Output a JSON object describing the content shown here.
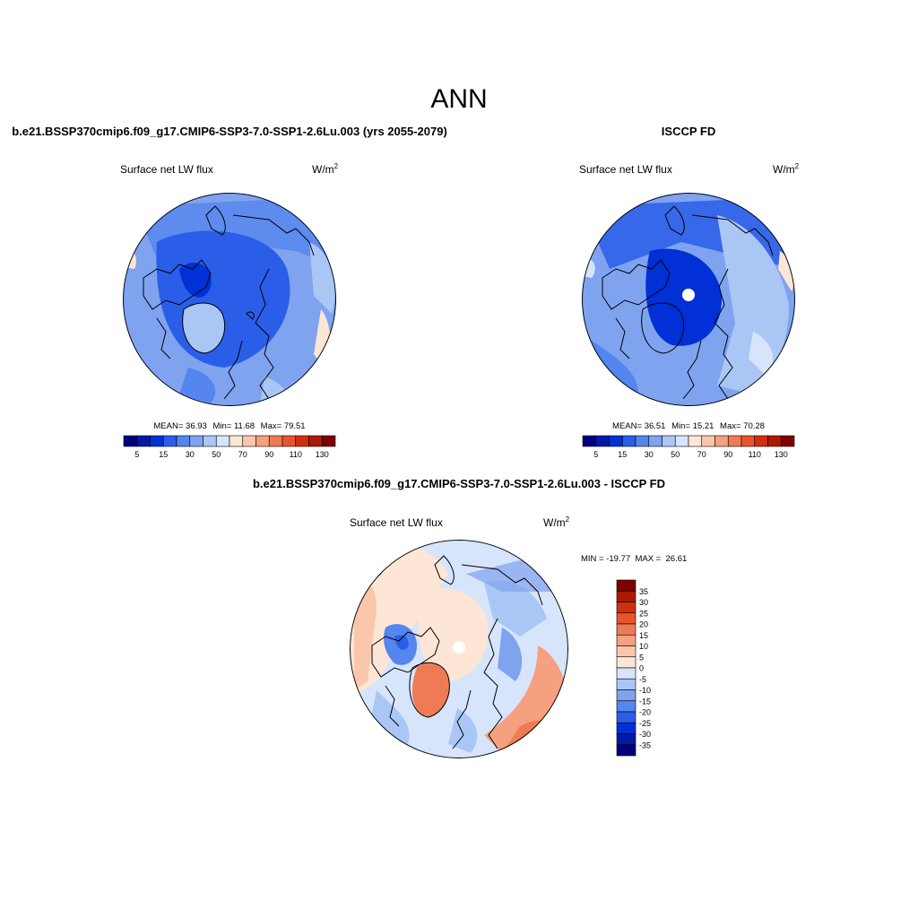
{
  "figure": {
    "title": "ANN"
  },
  "panels": [
    {
      "title": "b.e21.BSSP370cmip6.f09_g17.CMIP6-SSP3-7.0-SSP1-2.6Lu.003 (yrs 2055-2079)",
      "variable": "Surface net LW flux",
      "units_base": "W/m",
      "units_exp": "2",
      "stats": {
        "mean_label": "MEAN=",
        "mean": "36.93",
        "min_label": "Min=",
        "min": "11.68",
        "max_label": "Max=",
        "max": "79.51"
      }
    },
    {
      "title": "ISCCP FD",
      "variable": "Surface net LW flux",
      "units_base": "W/m",
      "units_exp": "2",
      "stats": {
        "mean_label": "MEAN=",
        "mean": "36.51",
        "min_label": "Min=",
        "min": "15.21",
        "max_label": "Max=",
        "max": "70.28"
      }
    },
    {
      "title": "b.e21.BSSP370cmip6.f09_g17.CMIP6-SSP3-7.0-SSP1-2.6Lu.003 - ISCCP FD",
      "variable": "Surface net LW flux",
      "units_base": "W/m",
      "units_exp": "2",
      "minmax_text": "MIN = -19.77  MAX =  26.61"
    }
  ],
  "colorbars": {
    "horizontal": {
      "colors": [
        "#00007f",
        "#0019a8",
        "#0030d6",
        "#2a5ee8",
        "#5585ee",
        "#7fa3ef",
        "#aac6f5",
        "#d6e5fb",
        "#fde6d5",
        "#fbc7ab",
        "#f5a07e",
        "#ef7b55",
        "#e9542d",
        "#d1300f",
        "#ab1a05",
        "#7f0000"
      ],
      "tick_labels": [
        "5",
        "15",
        "30",
        "50",
        "70",
        "90",
        "110",
        "130"
      ]
    },
    "vertical": {
      "colors_top_to_bottom": [
        "#7f0000",
        "#ab1a05",
        "#d1300f",
        "#e9542d",
        "#ef7b55",
        "#f5a07e",
        "#fbc7ab",
        "#fde6d5",
        "#d6e5fb",
        "#aac6f5",
        "#7fa3ef",
        "#5585ee",
        "#2a5ee8",
        "#0030d6",
        "#0019a8",
        "#00007f"
      ],
      "tick_labels_top_to_bottom": [
        "35",
        "30",
        "25",
        "20",
        "15",
        "10",
        "5",
        "0",
        "-5",
        "-10",
        "-15",
        "-20",
        "-25",
        "-30",
        "-35"
      ]
    }
  },
  "colors": {
    "land_outline": "#000000",
    "missing": "#ffffff"
  }
}
